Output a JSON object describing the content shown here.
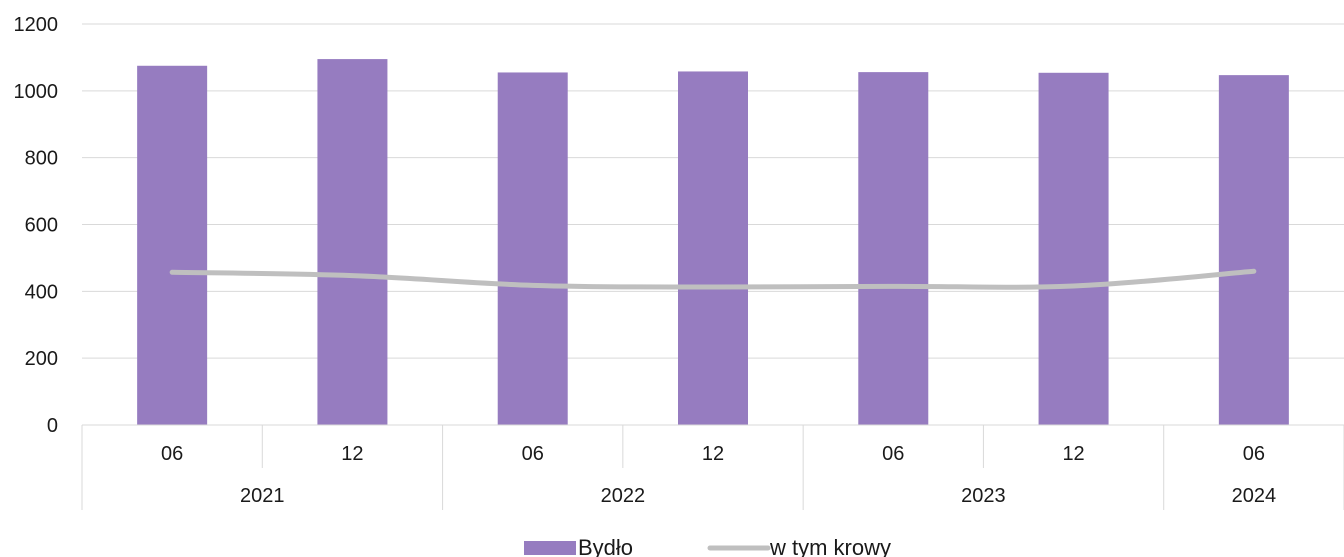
{
  "chart_data": {
    "type": "bar",
    "categories": [
      {
        "month": "06",
        "year": "2021"
      },
      {
        "month": "12",
        "year": "2021"
      },
      {
        "month": "06",
        "year": "2022"
      },
      {
        "month": "12",
        "year": "2022"
      },
      {
        "month": "06",
        "year": "2023"
      },
      {
        "month": "12",
        "year": "2023"
      },
      {
        "month": "06",
        "year": "2024"
      }
    ],
    "years": [
      "2021",
      "2022",
      "2023",
      "2024"
    ],
    "series": [
      {
        "name": "Bydło",
        "type": "bar",
        "color": "#967cc0",
        "values": [
          1075,
          1095,
          1055,
          1058,
          1056,
          1054,
          1047
        ]
      },
      {
        "name": "w tym krowy",
        "type": "line",
        "color": "#bfbfbf",
        "values": [
          457,
          447,
          418,
          413,
          415,
          416,
          460
        ]
      }
    ],
    "ylim": [
      0,
      1200
    ],
    "yticks": [
      "0",
      "200",
      "400",
      "600",
      "800",
      "1000",
      "1200"
    ],
    "grid": true,
    "legend": "bottom-center",
    "title": "",
    "xlabel": "",
    "ylabel": ""
  }
}
